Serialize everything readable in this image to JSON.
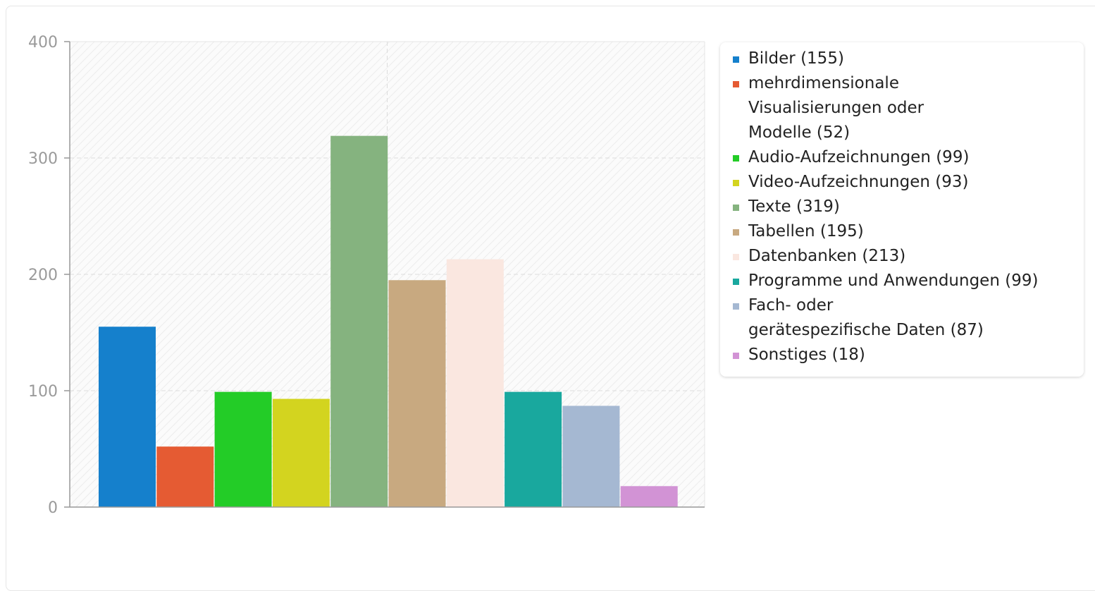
{
  "chart_data": {
    "type": "bar",
    "title": "",
    "xlabel": "",
    "ylabel": "",
    "ylim": [
      0,
      400
    ],
    "yticks": [
      0,
      100,
      200,
      300,
      400
    ],
    "ytick_labels": [
      "0",
      "100",
      "200",
      "300",
      "400"
    ],
    "grid": true,
    "legend_position": "right",
    "series": [
      {
        "name": "Bilder (155)",
        "values": [
          155
        ],
        "color": "#1580cc"
      },
      {
        "name": "mehrdimensionale Visualisierungen oder Modelle (52)",
        "values": [
          52
        ],
        "color": "#e55b33"
      },
      {
        "name": "Audio-Aufzeichnungen (99)",
        "values": [
          99
        ],
        "color": "#23cc27"
      },
      {
        "name": "Video-Aufzeichnungen (93)",
        "values": [
          93
        ],
        "color": "#d3d41f"
      },
      {
        "name": "Texte (319)",
        "values": [
          319
        ],
        "color": "#85b37f"
      },
      {
        "name": "Tabellen (195)",
        "values": [
          195
        ],
        "color": "#c8a980"
      },
      {
        "name": "Datenbanken (213)",
        "values": [
          213
        ],
        "color": "#fae7e0"
      },
      {
        "name": "Programme und Anwendungen (99)",
        "values": [
          99
        ],
        "color": "#19a89e"
      },
      {
        "name": "Fach- oder gerätespezifische Daten (87)",
        "values": [
          87
        ],
        "color": "#a5b8d2"
      },
      {
        "name": "Sonstiges (18)",
        "values": [
          18
        ],
        "color": "#d293d5"
      }
    ]
  },
  "legend_lines": [
    [
      "Bilder (155)"
    ],
    [
      "mehrdimensionale",
      "Visualisierungen oder",
      "Modelle (52)"
    ],
    [
      "Audio-Aufzeichnungen (99)"
    ],
    [
      "Video-Aufzeichnungen (93)"
    ],
    [
      "Texte (319)"
    ],
    [
      "Tabellen (195)"
    ],
    [
      "Datenbanken (213)"
    ],
    [
      "Programme und Anwendungen (99)"
    ],
    [
      "Fach- oder",
      "gerätespezifische Daten (87)"
    ],
    [
      "Sonstiges (18)"
    ]
  ]
}
